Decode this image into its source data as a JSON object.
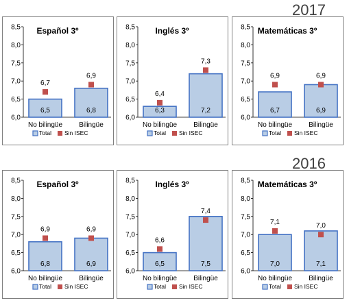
{
  "years": [
    {
      "label": "2017",
      "key": "y2017"
    },
    {
      "label": "2016",
      "key": "y2016"
    }
  ],
  "legend": {
    "total": "Total",
    "sin_isec": "Sin ISEC"
  },
  "colors": {
    "bar_fill": "#b9cde5",
    "bar_stroke": "#4472c4",
    "marker": "#c0504d",
    "grid": "#bfbfbf"
  },
  "chart_data": [
    {
      "type": "bar",
      "year": "2017",
      "title": "Español 3º",
      "categories": [
        "No bilingüe",
        "Bilingüe"
      ],
      "series": [
        {
          "name": "Total",
          "values": [
            6.5,
            6.8
          ]
        },
        {
          "name": "Sin ISEC",
          "values": [
            6.7,
            6.9
          ]
        }
      ],
      "ylim": [
        6.0,
        8.5
      ],
      "yticks": [
        "6,0",
        "6,5",
        "7,0",
        "7,5",
        "8,0",
        "8,5"
      ],
      "bar_labels": [
        "6,5",
        "6,8"
      ],
      "marker_labels": [
        "6,7",
        "6,9"
      ],
      "grid": false,
      "legend": "bottom"
    },
    {
      "type": "bar",
      "year": "2017",
      "title": "Inglés 3º",
      "categories": [
        "No bilingüe",
        "Bilingüe"
      ],
      "series": [
        {
          "name": "Total",
          "values": [
            6.3,
            7.2
          ]
        },
        {
          "name": "Sin ISEC",
          "values": [
            6.4,
            7.3
          ]
        }
      ],
      "ylim": [
        6.0,
        8.5
      ],
      "yticks": [
        "6,0",
        "6,5",
        "7,0",
        "7,5",
        "8,0",
        "8,5"
      ],
      "bar_labels": [
        "6,3",
        "7,2"
      ],
      "marker_labels": [
        "6,4",
        "7,3"
      ],
      "grid": false,
      "legend": "bottom"
    },
    {
      "type": "bar",
      "year": "2017",
      "title": "Matemáticas 3º",
      "categories": [
        "No bilingüe",
        "Bilingüe"
      ],
      "series": [
        {
          "name": "Total",
          "values": [
            6.7,
            6.9
          ]
        },
        {
          "name": "Sin ISEC",
          "values": [
            6.9,
            6.9
          ]
        }
      ],
      "ylim": [
        6.0,
        8.5
      ],
      "yticks": [
        "6,0",
        "6,5",
        "7,0",
        "7,5",
        "8,0",
        "8,5"
      ],
      "bar_labels": [
        "6,7",
        "6,9"
      ],
      "marker_labels": [
        "6,9",
        "6,9"
      ],
      "grid": false,
      "legend": "bottom"
    },
    {
      "type": "bar",
      "year": "2016",
      "title": "Español 3º",
      "categories": [
        "No bilingüe",
        "Bilingüe"
      ],
      "series": [
        {
          "name": "Total",
          "values": [
            6.8,
            6.9
          ]
        },
        {
          "name": "Sin ISEC",
          "values": [
            6.9,
            6.9
          ]
        }
      ],
      "ylim": [
        6.0,
        8.5
      ],
      "yticks": [
        "6,0",
        "6,5",
        "7,0",
        "7,5",
        "8,0",
        "8,5"
      ],
      "bar_labels": [
        "6,8",
        "6,9"
      ],
      "marker_labels": [
        "6,9",
        "6,9"
      ],
      "grid": false,
      "legend": "bottom"
    },
    {
      "type": "bar",
      "year": "2016",
      "title": "Inglés 3º",
      "categories": [
        "No bilingüe",
        "Bilingüe"
      ],
      "series": [
        {
          "name": "Total",
          "values": [
            6.5,
            7.5
          ]
        },
        {
          "name": "Sin ISEC",
          "values": [
            6.6,
            7.4
          ]
        }
      ],
      "ylim": [
        6.0,
        8.5
      ],
      "yticks": [
        "6,0",
        "6,5",
        "7,0",
        "7,5",
        "8,0",
        "8,5"
      ],
      "bar_labels": [
        "6,5",
        "7,5"
      ],
      "marker_labels": [
        "6,6",
        "7,4"
      ],
      "grid": false,
      "legend": "bottom"
    },
    {
      "type": "bar",
      "year": "2016",
      "title": "Matemáticas 3º",
      "categories": [
        "No bilingüe",
        "Bilingüe"
      ],
      "series": [
        {
          "name": "Total",
          "values": [
            7.0,
            7.1
          ]
        },
        {
          "name": "Sin ISEC",
          "values": [
            7.1,
            7.0
          ]
        }
      ],
      "ylim": [
        6.0,
        8.5
      ],
      "yticks": [
        "6,0",
        "6,5",
        "7,0",
        "7,5",
        "8,0",
        "8,5"
      ],
      "bar_labels": [
        "7,0",
        "7,1"
      ],
      "marker_labels": [
        "7,1",
        "7,0"
      ],
      "grid": false,
      "legend": "bottom"
    }
  ]
}
